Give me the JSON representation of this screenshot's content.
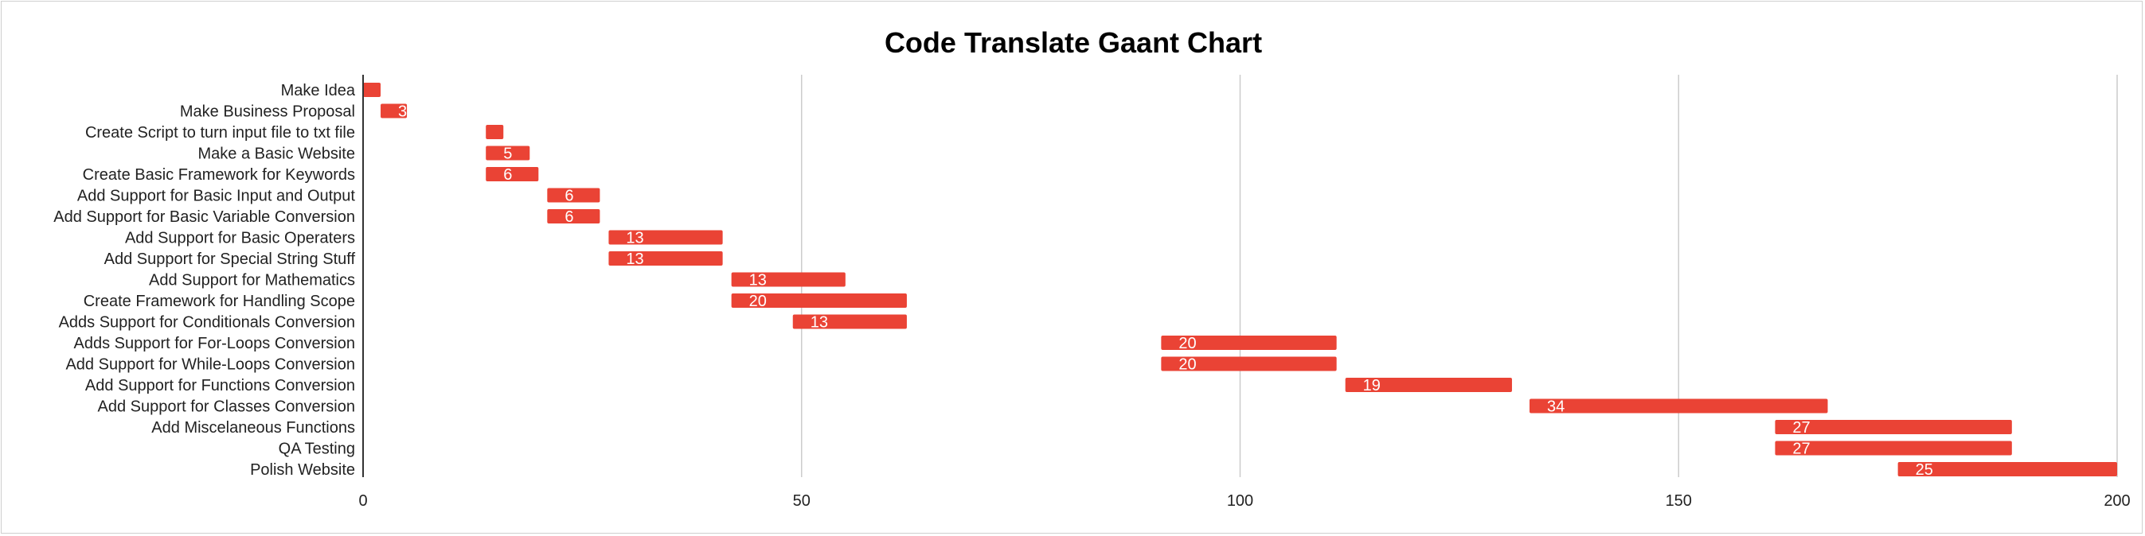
{
  "chart_data": {
    "type": "bar",
    "orientation": "horizontal",
    "title": "Code Translate Gaant Chart",
    "xlabel": "",
    "ylabel": "",
    "xlim": [
      0,
      200
    ],
    "xticks": [
      0,
      50,
      100,
      150,
      200
    ],
    "grid": true,
    "legend": "none",
    "bar_color": "#ea4335",
    "categories": [
      "Make Idea",
      "Make Business Proposal",
      "Create Script to turn input file to txt file",
      "Make a Basic Website",
      "Create Basic Framework for Keywords",
      "Add Support for Basic Input and Output",
      "Add Support for Basic Variable Conversion",
      "Add Support for Basic Operaters",
      "Add Support for Special String Stuff",
      "Add Support for Mathematics",
      "Create Framework for Handling Scope",
      "Adds Support for Conditionals Conversion",
      "Adds Support for For-Loops Conversion",
      "Add Support for While-Loops Conversion",
      "Add Support for Functions Conversion",
      "Add Support for Classes Conversion",
      "Add Miscelaneous Functions",
      "QA Testing",
      "Polish Website"
    ],
    "start": [
      0,
      2,
      14,
      14,
      14,
      21,
      21,
      28,
      28,
      42,
      42,
      49,
      91,
      91,
      112,
      133,
      161,
      161,
      175
    ],
    "duration": [
      2,
      3,
      2,
      5,
      6,
      6,
      6,
      13,
      13,
      13,
      20,
      13,
      20,
      20,
      19,
      34,
      27,
      27,
      25
    ],
    "data_labels": [
      "",
      "3",
      "",
      "5",
      "6",
      "6",
      "6",
      "13",
      "13",
      "13",
      "20",
      "13",
      "20",
      "20",
      "19",
      "34",
      "27",
      "27",
      "25"
    ]
  }
}
